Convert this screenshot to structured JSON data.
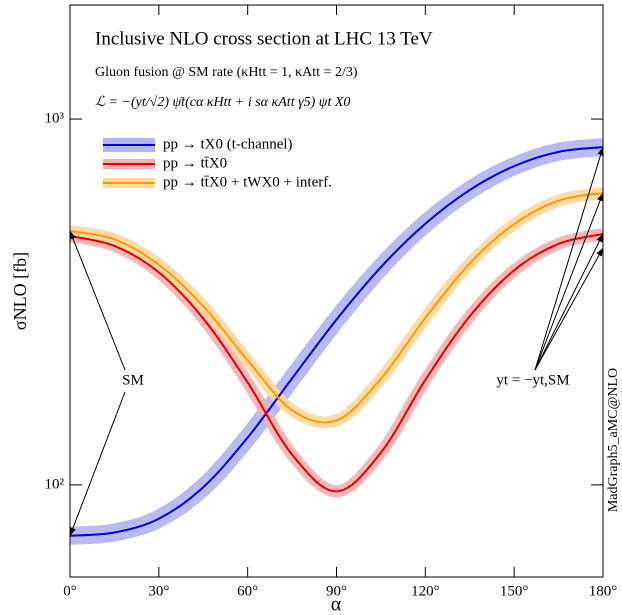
{
  "chart_data": {
    "type": "line",
    "title": "Inclusive NLO cross section at LHC 13 TeV",
    "subtitle": "Gluon fusion @ SM rate  (κHtt = 1, κAtt = 2/3)",
    "formula": "ℒ = −(yt/√2) ψ̄t(cα κHtt + i sα κAtt γ5) ψt X0",
    "x_label": "α",
    "y_label": "σNLO [fb]",
    "log_y": true,
    "legend_position": "upper left",
    "annotations": [
      "SM",
      "yt = −yt,SM",
      "MadGraph5_aMC@NLO"
    ],
    "x": [
      0,
      15,
      30,
      45,
      60,
      75,
      90,
      105,
      120,
      135,
      150,
      165,
      180
    ],
    "xlim": [
      0,
      180
    ],
    "xticks": [
      {
        "value": 0,
        "label": "0°"
      },
      {
        "value": 30,
        "label": "30°"
      },
      {
        "value": 60,
        "label": "60°"
      },
      {
        "value": 90,
        "label": "90°"
      },
      {
        "value": 120,
        "label": "120°"
      },
      {
        "value": 150,
        "label": "150°"
      },
      {
        "value": 180,
        "label": "180°"
      }
    ],
    "ylim": [
      56,
      2050
    ],
    "yticks": [
      {
        "value": 100,
        "label": "10²"
      },
      {
        "value": 1000,
        "label": "10³"
      }
    ],
    "series": [
      {
        "name": "pp → tX0  (t-channel)",
        "color": "#0000dd",
        "band_color": "#b3b3f5",
        "values": [
          72.6,
          74.1,
          80.8,
          98.5,
          134.7,
          195.5,
          283,
          393.7,
          517.5,
          639.7,
          743.6,
          813.5,
          838
        ]
      },
      {
        "name": "pp → tt̄X0",
        "color": "#e00000",
        "band_color": "#f5b0b0",
        "values": [
          479,
          450,
          381,
          285,
          190.5,
          121,
          96,
          122.5,
          193.5,
          289,
          386,
          456,
          485
        ]
      },
      {
        "name": "pp → tt̄X0 + tWX0 + interf.",
        "color": "#ff9900",
        "band_color": "#fbd8a0",
        "values": [
          494,
          469,
          400,
          308,
          219,
          160,
          150,
          195,
          286,
          403,
          516,
          598,
          628
        ]
      }
    ]
  }
}
